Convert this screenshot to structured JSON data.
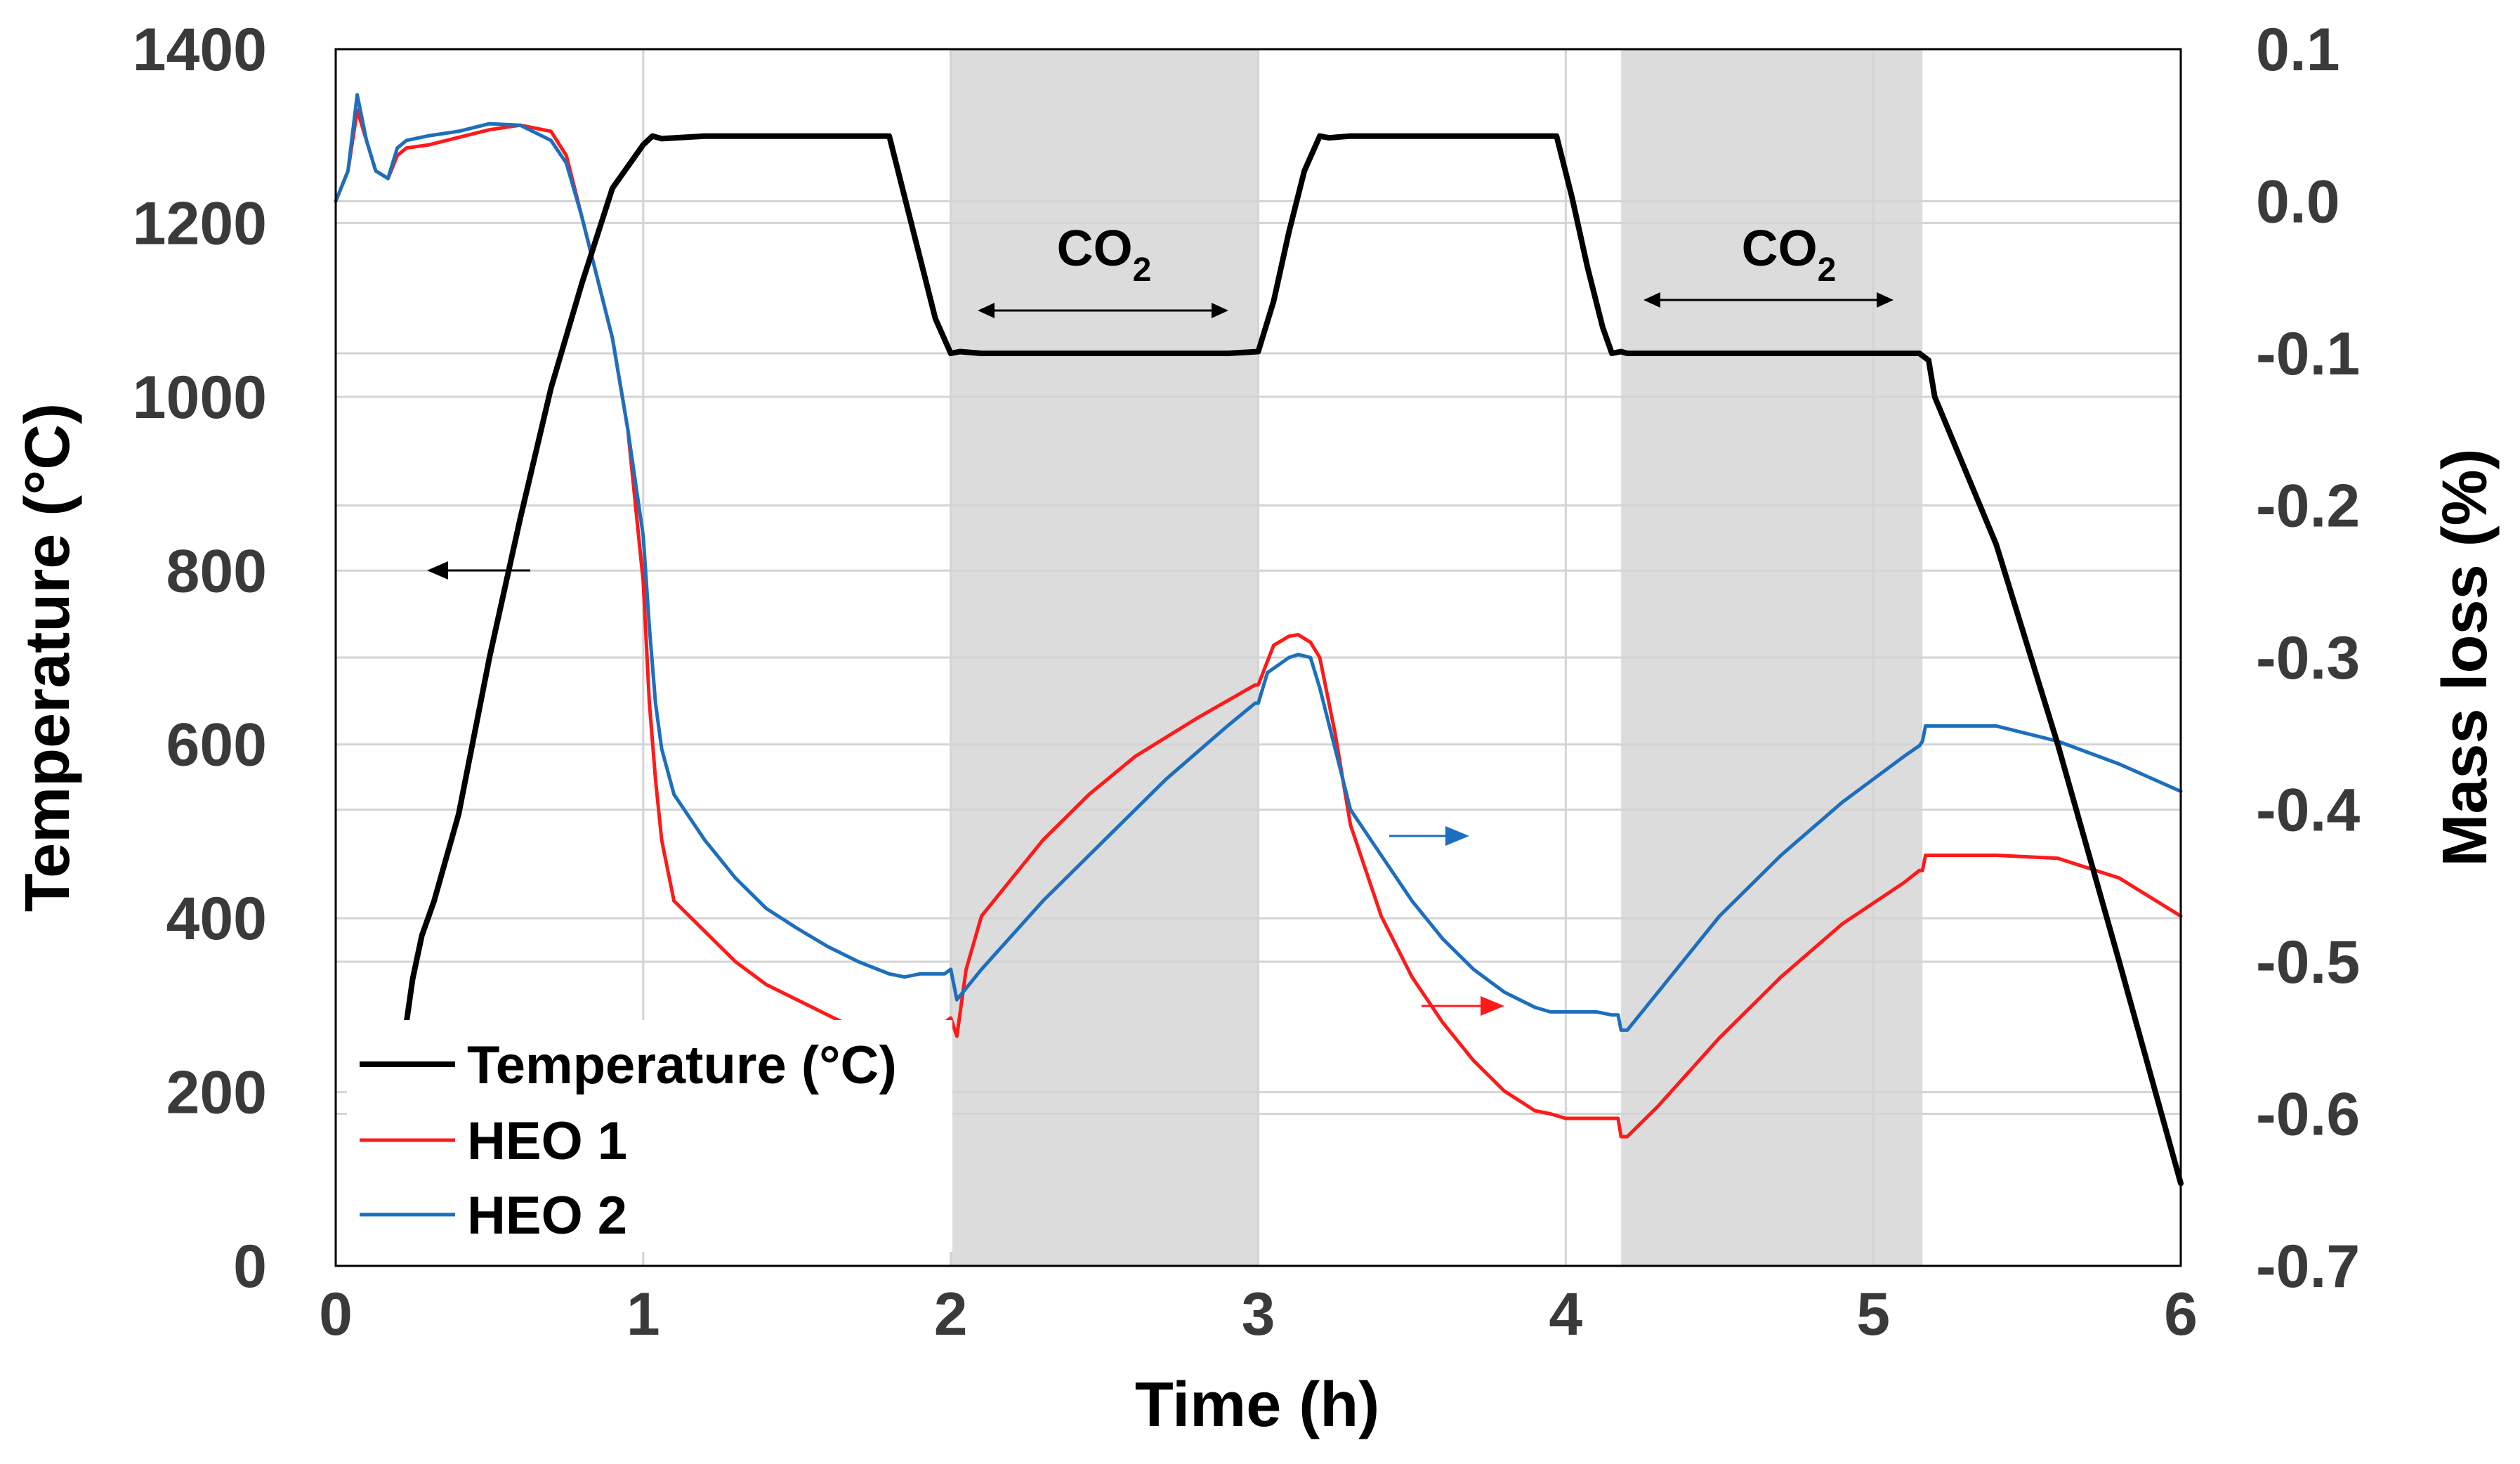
{
  "chart_data": {
    "type": "line",
    "title": "",
    "xlabel": "Time (h)",
    "ylabel": "Temperature (°C)",
    "y2label": "Mass loss (%)",
    "xlim": [
      0,
      6
    ],
    "ylim": [
      0,
      1400
    ],
    "y2lim": [
      -0.7,
      0.1
    ],
    "xticks": [
      "0",
      "1",
      "2",
      "3",
      "4",
      "5",
      "6"
    ],
    "yticks": [
      "0",
      "200",
      "400",
      "600",
      "800",
      "1000",
      "1200",
      "1400"
    ],
    "y2ticks": [
      "-0.7",
      "-0.6",
      "-0.5",
      "-0.4",
      "-0.3",
      "-0.2",
      "-0.1",
      "0.0",
      "0.1"
    ],
    "grid": true,
    "co2_label": "CO",
    "co2_sub": "2",
    "shaded_regions": [
      {
        "label": "CO2",
        "x": [
          2.0,
          3.0
        ]
      },
      {
        "label": "CO2",
        "x": [
          4.18,
          5.16
        ]
      }
    ],
    "legend_position": "bottom-left",
    "series": [
      {
        "name": "Temperature (°C)",
        "axis": "left",
        "color": "#000000",
        "x": [
          0.23,
          0.25,
          0.28,
          0.3,
          0.32,
          0.36,
          0.4,
          0.5,
          0.6,
          0.7,
          0.8,
          0.9,
          1.0,
          1.03,
          1.06,
          1.2,
          1.5,
          1.8,
          1.85,
          1.9,
          1.95,
          2.0,
          2.03,
          2.1,
          2.5,
          2.9,
          3.0,
          3.05,
          3.1,
          3.15,
          3.2,
          3.23,
          3.3,
          3.6,
          3.97,
          4.02,
          4.07,
          4.12,
          4.15,
          4.18,
          4.2,
          4.5,
          5.0,
          5.15,
          5.18,
          5.2,
          5.4,
          5.6,
          5.8,
          6.0
        ],
        "values": [
          280,
          330,
          380,
          400,
          420,
          470,
          520,
          700,
          860,
          1010,
          1130,
          1240,
          1290,
          1300,
          1297,
          1300,
          1300,
          1300,
          1230,
          1160,
          1090,
          1050,
          1052,
          1050,
          1050,
          1050,
          1052,
          1110,
          1190,
          1260,
          1300,
          1298,
          1300,
          1300,
          1300,
          1230,
          1150,
          1080,
          1050,
          1052,
          1050,
          1050,
          1050,
          1050,
          1042,
          1000,
          830,
          600,
          350,
          95
        ]
      },
      {
        "name": "HEO 1",
        "axis": "right",
        "color": "#ff1a1a",
        "x": [
          0.0,
          0.04,
          0.07,
          0.1,
          0.13,
          0.17,
          0.2,
          0.23,
          0.3,
          0.4,
          0.5,
          0.6,
          0.7,
          0.75,
          0.8,
          0.85,
          0.9,
          0.95,
          1.0,
          1.02,
          1.04,
          1.06,
          1.1,
          1.2,
          1.3,
          1.4,
          1.5,
          1.6,
          1.7,
          1.8,
          1.85,
          1.9,
          1.95,
          1.98,
          2.0,
          2.02,
          2.05,
          2.1,
          2.2,
          2.3,
          2.45,
          2.6,
          2.8,
          2.99,
          3.0,
          3.05,
          3.1,
          3.13,
          3.17,
          3.2,
          3.25,
          3.3,
          3.4,
          3.5,
          3.6,
          3.7,
          3.8,
          3.9,
          3.95,
          4.0,
          4.1,
          4.15,
          4.17,
          4.18,
          4.2,
          4.3,
          4.5,
          4.7,
          4.9,
          5.1,
          5.15,
          5.16,
          5.17,
          5.2,
          5.4,
          5.6,
          5.8,
          6.0
        ],
        "values": [
          0.0,
          0.02,
          0.06,
          0.04,
          0.02,
          0.015,
          0.03,
          0.035,
          0.037,
          0.042,
          0.047,
          0.05,
          0.046,
          0.03,
          -0.01,
          -0.05,
          -0.09,
          -0.15,
          -0.25,
          -0.33,
          -0.38,
          -0.42,
          -0.46,
          -0.48,
          -0.5,
          -0.515,
          -0.525,
          -0.535,
          -0.545,
          -0.552,
          -0.552,
          -0.55,
          -0.545,
          -0.54,
          -0.537,
          -0.549,
          -0.505,
          -0.47,
          -0.445,
          -0.42,
          -0.39,
          -0.365,
          -0.34,
          -0.318,
          -0.318,
          -0.292,
          -0.286,
          -0.285,
          -0.29,
          -0.3,
          -0.35,
          -0.41,
          -0.47,
          -0.51,
          -0.54,
          -0.565,
          -0.585,
          -0.598,
          -0.6,
          -0.603,
          -0.603,
          -0.603,
          -0.603,
          -0.615,
          -0.615,
          -0.595,
          -0.55,
          -0.51,
          -0.475,
          -0.448,
          -0.44,
          -0.44,
          -0.43,
          -0.43,
          -0.43,
          -0.432,
          -0.445,
          -0.47
        ]
      },
      {
        "name": "HEO 2",
        "axis": "right",
        "color": "#1d6fbd",
        "x": [
          0.0,
          0.04,
          0.07,
          0.1,
          0.13,
          0.17,
          0.2,
          0.23,
          0.3,
          0.4,
          0.5,
          0.6,
          0.7,
          0.75,
          0.8,
          0.85,
          0.9,
          0.95,
          1.0,
          1.02,
          1.04,
          1.06,
          1.1,
          1.2,
          1.3,
          1.4,
          1.5,
          1.6,
          1.7,
          1.8,
          1.85,
          1.9,
          1.95,
          1.98,
          2.0,
          2.02,
          2.1,
          2.3,
          2.5,
          2.7,
          2.9,
          2.99,
          3.0,
          3.03,
          3.1,
          3.13,
          3.17,
          3.2,
          3.25,
          3.3,
          3.4,
          3.5,
          3.6,
          3.7,
          3.8,
          3.9,
          3.95,
          4.0,
          4.1,
          4.15,
          4.17,
          4.18,
          4.2,
          4.3,
          4.5,
          4.7,
          4.9,
          5.1,
          5.15,
          5.16,
          5.17,
          5.2,
          5.3,
          5.4,
          5.6,
          5.8,
          6.0
        ],
        "values": [
          0.0,
          0.02,
          0.07,
          0.04,
          0.02,
          0.015,
          0.035,
          0.04,
          0.043,
          0.046,
          0.051,
          0.05,
          0.04,
          0.025,
          -0.01,
          -0.05,
          -0.09,
          -0.15,
          -0.22,
          -0.28,
          -0.33,
          -0.36,
          -0.39,
          -0.42,
          -0.445,
          -0.465,
          -0.478,
          -0.49,
          -0.5,
          -0.508,
          -0.51,
          -0.508,
          -0.508,
          -0.508,
          -0.505,
          -0.525,
          -0.505,
          -0.46,
          -0.42,
          -0.38,
          -0.345,
          -0.33,
          -0.33,
          -0.31,
          -0.3,
          -0.298,
          -0.3,
          -0.32,
          -0.36,
          -0.4,
          -0.43,
          -0.46,
          -0.485,
          -0.505,
          -0.52,
          -0.53,
          -0.533,
          -0.533,
          -0.533,
          -0.535,
          -0.535,
          -0.545,
          -0.545,
          -0.52,
          -0.47,
          -0.43,
          -0.395,
          -0.365,
          -0.358,
          -0.355,
          -0.345,
          -0.345,
          -0.345,
          -0.345,
          -0.355,
          -0.37,
          -0.388
        ]
      }
    ],
    "annotations": [
      {
        "text": "←",
        "points_to": "Temperature (°C)"
      },
      {
        "text": "→",
        "points_to": "HEO 1"
      },
      {
        "text": "→",
        "points_to": "HEO 2"
      }
    ]
  }
}
